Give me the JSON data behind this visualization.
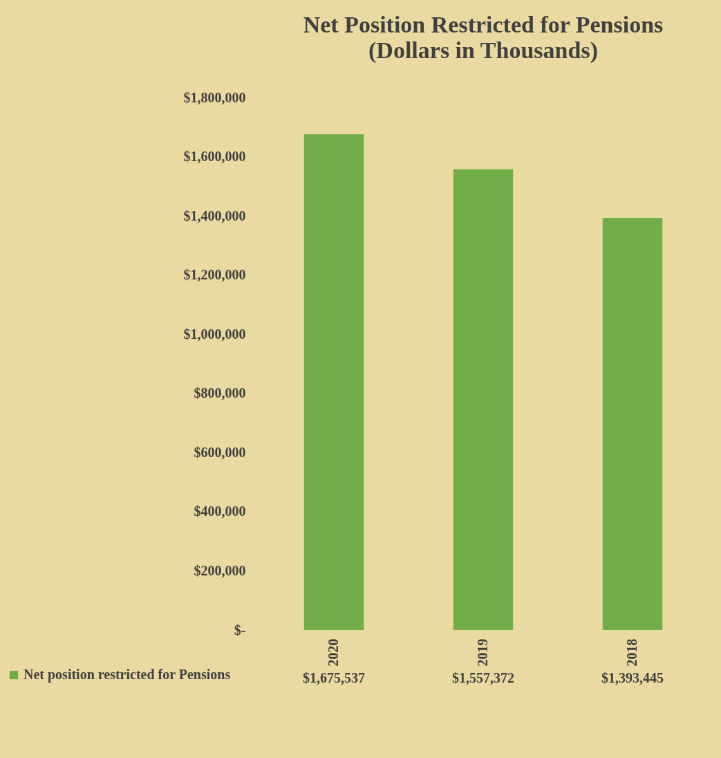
{
  "chart_data": {
    "type": "bar",
    "title": "Net Position Restricted for Pensions",
    "subtitle": "(Dollars in Thousands)",
    "categories": [
      "2020",
      "2019",
      "2018"
    ],
    "series": [
      {
        "name": "Net position restricted for Pensions",
        "color": "#70ad47",
        "values": [
          1675537,
          1557372,
          1393445
        ],
        "value_labels": [
          "$1,675,537",
          "$1,557,372",
          "$1,393,445"
        ]
      }
    ],
    "ylim": [
      0,
      1800000
    ],
    "yticks": [
      {
        "value": 0,
        "label": "$-"
      },
      {
        "value": 200000,
        "label": "$200,000"
      },
      {
        "value": 400000,
        "label": "$400,000"
      },
      {
        "value": 600000,
        "label": "$600,000"
      },
      {
        "value": 800000,
        "label": "$800,000"
      },
      {
        "value": 1000000,
        "label": "$1,000,000"
      },
      {
        "value": 1200000,
        "label": "$1,200,000"
      },
      {
        "value": 1400000,
        "label": "$1,400,000"
      },
      {
        "value": 1600000,
        "label": "$1,600,000"
      },
      {
        "value": 1800000,
        "label": "$1,800,000"
      }
    ],
    "grid": false,
    "legend": "bottom left"
  }
}
